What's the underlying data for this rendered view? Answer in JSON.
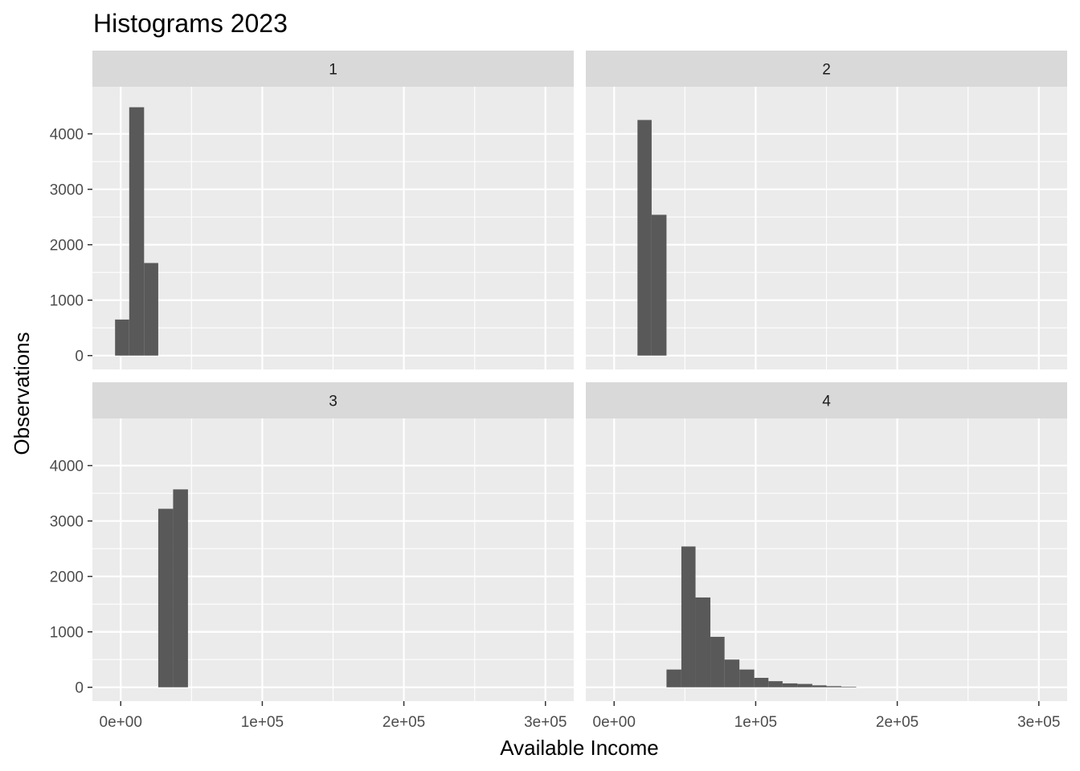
{
  "chart_data": {
    "type": "bar",
    "title": "Histograms 2023",
    "xlabel": "Available Income",
    "ylabel": "Observations",
    "xlim": [
      -20000,
      320000
    ],
    "ylim": [
      -250,
      4850
    ],
    "x_ticks": [
      0,
      100000,
      200000,
      300000
    ],
    "x_tick_labels": [
      "0e+00",
      "1e+05",
      "2e+05",
      "3e+05"
    ],
    "y_ticks": [
      0,
      1000,
      2000,
      3000,
      4000
    ],
    "y_tick_labels": [
      "0",
      "1000",
      "2000",
      "3000",
      "4000"
    ],
    "grid": true,
    "facet_layout": "2x2",
    "colors": {
      "bar": "#595959",
      "panel_bg": "#ebebeb",
      "strip_bg": "#d9d9d9",
      "grid": "#ffffff"
    },
    "panels": [
      {
        "strip": "1",
        "bins": [
          {
            "x0": -4000,
            "x1": 6000,
            "count": 650
          },
          {
            "x0": 6000,
            "x1": 16500,
            "count": 4480
          },
          {
            "x0": 16500,
            "x1": 26500,
            "count": 1670
          }
        ]
      },
      {
        "strip": "2",
        "bins": [
          {
            "x0": 16500,
            "x1": 26500,
            "count": 4250
          },
          {
            "x0": 26500,
            "x1": 37000,
            "count": 2540
          }
        ]
      },
      {
        "strip": "3",
        "bins": [
          {
            "x0": 26500,
            "x1": 37000,
            "count": 3220
          },
          {
            "x0": 37000,
            "x1": 47500,
            "count": 3570
          }
        ]
      },
      {
        "strip": "4",
        "bins": [
          {
            "x0": 37000,
            "x1": 47500,
            "count": 320
          },
          {
            "x0": 47500,
            "x1": 57500,
            "count": 2540
          },
          {
            "x0": 57500,
            "x1": 68000,
            "count": 1620
          },
          {
            "x0": 68000,
            "x1": 78000,
            "count": 910
          },
          {
            "x0": 78000,
            "x1": 88500,
            "count": 500
          },
          {
            "x0": 88500,
            "x1": 99000,
            "count": 320
          },
          {
            "x0": 99000,
            "x1": 109000,
            "count": 170
          },
          {
            "x0": 109000,
            "x1": 119000,
            "count": 110
          },
          {
            "x0": 119000,
            "x1": 129500,
            "count": 70
          },
          {
            "x0": 129500,
            "x1": 140000,
            "count": 60
          },
          {
            "x0": 140000,
            "x1": 150000,
            "count": 35
          },
          {
            "x0": 150000,
            "x1": 160500,
            "count": 20
          },
          {
            "x0": 160500,
            "x1": 171000,
            "count": 10
          }
        ]
      }
    ]
  }
}
